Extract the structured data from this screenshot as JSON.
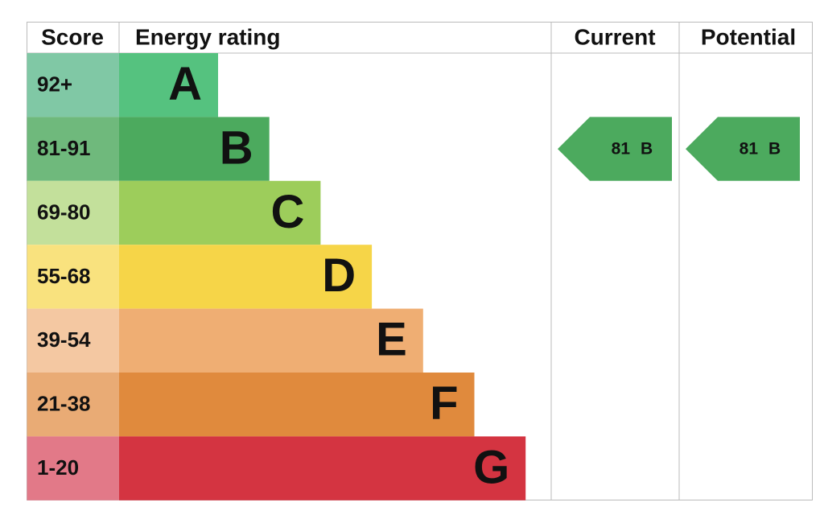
{
  "header": {
    "score": "Score",
    "rating": "Energy rating",
    "current": "Current",
    "potential": "Potential"
  },
  "rows": [
    {
      "range": "92+",
      "letter": "A",
      "color": "#55c27f",
      "range_color": "#80c8a5"
    },
    {
      "range": "81-91",
      "letter": "B",
      "color": "#4caa5e",
      "range_color": "#6fb97c"
    },
    {
      "range": "69-80",
      "letter": "C",
      "color": "#9dcd5b",
      "range_color": "#c3e09b"
    },
    {
      "range": "55-68",
      "letter": "D",
      "color": "#f6d548",
      "range_color": "#f9e27e"
    },
    {
      "range": "39-54",
      "letter": "E",
      "color": "#efae73",
      "range_color": "#f4c8a2"
    },
    {
      "range": "21-38",
      "letter": "F",
      "color": "#e08a3d",
      "range_color": "#e9ab75"
    },
    {
      "range": "1-20",
      "letter": "G",
      "color": "#d43441",
      "range_color": "#e27988"
    }
  ],
  "current": {
    "score": 81,
    "rating": "B"
  },
  "potential": {
    "score": 81,
    "rating": "B"
  }
}
